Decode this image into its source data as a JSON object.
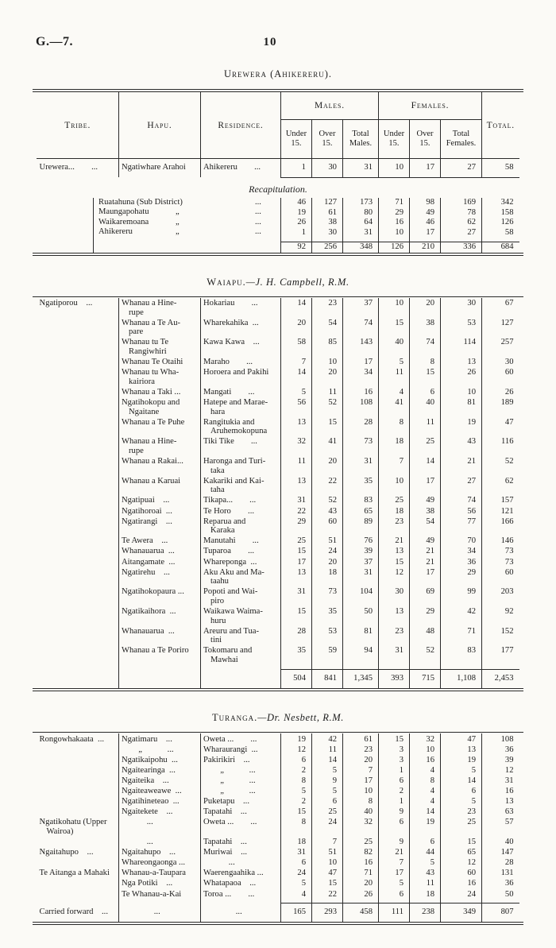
{
  "page": {
    "label": "G.—7.",
    "number": "10"
  },
  "columns": {
    "tribe": "Tribe.",
    "hapu": "Hapu.",
    "residence": "Residence.",
    "males": "Males.",
    "females": "Females.",
    "total": "Total.",
    "under": "Under 15.",
    "over": "Over 15.",
    "total_males": "Total Males.",
    "total_females": "Total Females."
  },
  "urewera": {
    "title": "Urewera (Ahikereru).",
    "rows": [
      {
        "tribe": "Urewera...  ...",
        "hapu": "Ngatiwhare Arahoi",
        "res": "Ahikereru  ...",
        "mu": "1",
        "mo": "30",
        "mt": "31",
        "fu": "10",
        "fo": "17",
        "ft": "27",
        "tot": "58"
      }
    ],
    "recap": {
      "heading": "Recapitulation.",
      "rows": [
        {
          "name": "Ruatahuna (Sub District)",
          "ditto": "",
          "dots": "...",
          "mu": "46",
          "mo": "127",
          "mt": "173",
          "fu": "71",
          "fo": "98",
          "ft": "169",
          "tot": "342"
        },
        {
          "name": "Maungapohatu",
          "ditto": "„",
          "dots": "...",
          "mu": "19",
          "mo": "61",
          "mt": "80",
          "fu": "29",
          "fo": "49",
          "ft": "78",
          "tot": "158"
        },
        {
          "name": "Waikaremoana",
          "ditto": "„",
          "dots": "...",
          "mu": "26",
          "mo": "38",
          "mt": "64",
          "fu": "16",
          "fo": "46",
          "ft": "62",
          "tot": "126"
        },
        {
          "name": "Ahikereru",
          "ditto": "„",
          "dots": "...",
          "mu": "1",
          "mo": "30",
          "mt": "31",
          "fu": "10",
          "fo": "17",
          "ft": "27",
          "tot": "58"
        }
      ],
      "totals": {
        "mu": "92",
        "mo": "256",
        "mt": "348",
        "fu": "126",
        "fo": "210",
        "ft": "336",
        "tot": "684"
      }
    }
  },
  "waiapu": {
    "title": "Waiapu.",
    "officer": "—J. H. Campbell, R.M.",
    "rows": [
      {
        "tribe": "Ngatiporou ...",
        "hapu": "Whanau a Hine-\nrupe",
        "res": "Hokariau  ...",
        "mu": "14",
        "mo": "23",
        "mt": "37",
        "fu": "10",
        "fo": "20",
        "ft": "30",
        "tot": "67"
      },
      {
        "tribe": "",
        "hapu": "Whanau a Te Au-\npare",
        "res": "Wharekahika ...",
        "mu": "20",
        "mo": "54",
        "mt": "74",
        "fu": "15",
        "fo": "38",
        "ft": "53",
        "tot": "127"
      },
      {
        "tribe": "",
        "hapu": "Whanau tu Te\nRangiwhiri",
        "res": "Kawa Kawa ...",
        "mu": "58",
        "mo": "85",
        "mt": "143",
        "fu": "40",
        "fo": "74",
        "ft": "114",
        "tot": "257"
      },
      {
        "tribe": "",
        "hapu": "Whanau Te Otaihi",
        "res": "Maraho  ...",
        "mu": "7",
        "mo": "10",
        "mt": "17",
        "fu": "5",
        "fo": "8",
        "ft": "13",
        "tot": "30"
      },
      {
        "tribe": "",
        "hapu": "Whanau tu Wha-\nkairiora",
        "res": "Horoera and Pakihi",
        "mu": "14",
        "mo": "20",
        "mt": "34",
        "fu": "11",
        "fo": "15",
        "ft": "26",
        "tot": "60"
      },
      {
        "tribe": "",
        "hapu": "Whanau a Taki ...",
        "res": "Mangati  ...",
        "mu": "5",
        "mo": "11",
        "mt": "16",
        "fu": "4",
        "fo": "6",
        "ft": "10",
        "tot": "26"
      },
      {
        "tribe": "",
        "hapu": "Ngatihokopu and\nNgaitane",
        "res": "Hatepe and Marae-\nhara",
        "mu": "56",
        "mo": "52",
        "mt": "108",
        "fu": "41",
        "fo": "40",
        "ft": "81",
        "tot": "189"
      },
      {
        "tribe": "",
        "hapu": "Whanau a Te Puhe",
        "res": "Rangitukia and\nAruhemokopuna",
        "mu": "13",
        "mo": "15",
        "mt": "28",
        "fu": "8",
        "fo": "11",
        "ft": "19",
        "tot": "47"
      },
      {
        "tribe": "",
        "hapu": "Whanau a Hine-\nrupe",
        "res": "Tiki Tike  ...",
        "mu": "32",
        "mo": "41",
        "mt": "73",
        "fu": "18",
        "fo": "25",
        "ft": "43",
        "tot": "116"
      },
      {
        "tribe": "",
        "hapu": "Whanau a Rakai...",
        "res": "Haronga and Turi-\ntaka",
        "mu": "11",
        "mo": "20",
        "mt": "31",
        "fu": "7",
        "fo": "14",
        "ft": "21",
        "tot": "52"
      },
      {
        "tribe": "",
        "hapu": "Whanau a Karuai",
        "res": "Kakariki and Kai-\ntaha",
        "mu": "13",
        "mo": "22",
        "mt": "35",
        "fu": "10",
        "fo": "17",
        "ft": "27",
        "tot": "62"
      },
      {
        "tribe": "",
        "hapu": "Ngatipuai ...",
        "res": "Tikapa...  ...",
        "mu": "31",
        "mo": "52",
        "mt": "83",
        "fu": "25",
        "fo": "49",
        "ft": "74",
        "tot": "157"
      },
      {
        "tribe": "",
        "hapu": "Ngatihoroai ...",
        "res": "Te Horo  ...",
        "mu": "22",
        "mo": "43",
        "mt": "65",
        "fu": "18",
        "fo": "38",
        "ft": "56",
        "tot": "121"
      },
      {
        "tribe": "",
        "hapu": "Ngatirangi ...",
        "res": "Reparua and\nKaraka",
        "mu": "29",
        "mo": "60",
        "mt": "89",
        "fu": "23",
        "fo": "54",
        "ft": "77",
        "tot": "166"
      },
      {
        "tribe": "",
        "hapu": "Te Awera ...",
        "res": "Manutahi  ...",
        "mu": "25",
        "mo": "51",
        "mt": "76",
        "fu": "21",
        "fo": "49",
        "ft": "70",
        "tot": "146"
      },
      {
        "tribe": "",
        "hapu": "Whanauarua ...",
        "res": "Tuparoa  ...",
        "mu": "15",
        "mo": "24",
        "mt": "39",
        "fu": "13",
        "fo": "21",
        "ft": "34",
        "tot": "73"
      },
      {
        "tribe": "",
        "hapu": "Aitangamate ...",
        "res": "Whareponga ...",
        "mu": "17",
        "mo": "20",
        "mt": "37",
        "fu": "15",
        "fo": "21",
        "ft": "36",
        "tot": "73"
      },
      {
        "tribe": "",
        "hapu": "Ngatirehu ...",
        "res": "Aku Aku and Ma-\ntaahu",
        "mu": "13",
        "mo": "18",
        "mt": "31",
        "fu": "12",
        "fo": "17",
        "ft": "29",
        "tot": "60"
      },
      {
        "tribe": "",
        "hapu": "Ngatihokopaura ...",
        "res": "Popoti and Wai-\npiro",
        "mu": "31",
        "mo": "73",
        "mt": "104",
        "fu": "30",
        "fo": "69",
        "ft": "99",
        "tot": "203"
      },
      {
        "tribe": "",
        "hapu": "Ngatikaihora ...",
        "res": "Waikawa Waima-\nhuru",
        "mu": "15",
        "mo": "35",
        "mt": "50",
        "fu": "13",
        "fo": "29",
        "ft": "42",
        "tot": "92"
      },
      {
        "tribe": "",
        "hapu": "Whanauarua ...",
        "res": "Areuru and Tua-\ntini",
        "mu": "28",
        "mo": "53",
        "mt": "81",
        "fu": "23",
        "fo": "48",
        "ft": "71",
        "tot": "152"
      },
      {
        "tribe": "",
        "hapu": "Whanau a Te Poriro",
        "res": "Tokomaru and\nMawhai",
        "mu": "35",
        "mo": "59",
        "mt": "94",
        "fu": "31",
        "fo": "52",
        "ft": "83",
        "tot": "177"
      }
    ],
    "totals": {
      "mu": "504",
      "mo": "841",
      "mt": "1,345",
      "fu": "393",
      "fo": "715",
      "ft": "1,108",
      "tot": "2,453"
    }
  },
  "turanga": {
    "title": "Turanga.",
    "officer": "—Dr. Nesbett, R.M.",
    "rows": [
      {
        "tribe": "Rongowhakaata ...",
        "hapu": "Ngatimaru ...",
        "res": "Oweta ...  ...",
        "mu": "19",
        "mo": "42",
        "mt": "61",
        "fu": "15",
        "fo": "32",
        "ft": "47",
        "tot": "108"
      },
      {
        "tribe": "",
        "hapu": "  „   ...",
        "res": "Wharaurangi ...",
        "mu": "12",
        "mo": "11",
        "mt": "23",
        "fu": "3",
        "fo": "10",
        "ft": "13",
        "tot": "36"
      },
      {
        "tribe": "",
        "hapu": "Ngatikaipohu ...",
        "res": "Pakirikiri ...",
        "mu": "6",
        "mo": "14",
        "mt": "20",
        "fu": "3",
        "fo": "16",
        "ft": "19",
        "tot": "39"
      },
      {
        "tribe": "",
        "hapu": "Ngaitearinga ...",
        "res": "  „   ...",
        "mu": "2",
        "mo": "5",
        "mt": "7",
        "fu": "1",
        "fo": "4",
        "ft": "5",
        "tot": "12"
      },
      {
        "tribe": "",
        "hapu": "Ngaiteika ...",
        "res": "  „   ...",
        "mu": "8",
        "mo": "9",
        "mt": "17",
        "fu": "6",
        "fo": "8",
        "ft": "14",
        "tot": "31"
      },
      {
        "tribe": "",
        "hapu": "Ngaiteaweawe ...",
        "res": "  „   ...",
        "mu": "5",
        "mo": "5",
        "mt": "10",
        "fu": "2",
        "fo": "4",
        "ft": "6",
        "tot": "16"
      },
      {
        "tribe": "",
        "hapu": "Ngatihineteao ...",
        "res": "Puketapu ...",
        "mu": "2",
        "mo": "6",
        "mt": "8",
        "fu": "1",
        "fo": "4",
        "ft": "5",
        "tot": "13"
      },
      {
        "tribe": "",
        "hapu": "Ngaitekete ...",
        "res": "Tapatahi ...",
        "mu": "15",
        "mo": "25",
        "mt": "40",
        "fu": "9",
        "fo": "14",
        "ft": "23",
        "tot": "63"
      },
      {
        "tribe": "Ngatikohatu (Upper\nWairoa)",
        "hapu": "   ...",
        "res": "Oweta ...  ...",
        "mu": "8",
        "mo": "24",
        "mt": "32",
        "fu": "6",
        "fo": "19",
        "ft": "25",
        "tot": "57"
      },
      {
        "tribe": "",
        "hapu": "   ...",
        "res": "Tapatahi ...",
        "mu": "18",
        "mo": "7",
        "mt": "25",
        "fu": "9",
        "fo": "6",
        "ft": "15",
        "tot": "40"
      },
      {
        "tribe": "Ngaitahupo ...",
        "hapu": "Ngaitahupo ...",
        "res": "Muriwai ...",
        "mu": "31",
        "mo": "51",
        "mt": "82",
        "fu": "21",
        "fo": "44",
        "ft": "65",
        "tot": "147"
      },
      {
        "tribe": "",
        "hapu": "Whareongaonga ...",
        "res": "   ...",
        "mu": "6",
        "mo": "10",
        "mt": "16",
        "fu": "7",
        "fo": "5",
        "ft": "12",
        "tot": "28"
      },
      {
        "tribe": "Te Aitanga a Mahaki",
        "hapu": "Whanau-a-Taupara",
        "res": "Waerengaahika ...",
        "mu": "24",
        "mo": "47",
        "mt": "71",
        "fu": "17",
        "fo": "43",
        "ft": "60",
        "tot": "131"
      },
      {
        "tribe": "",
        "hapu": "Nga Potiki ...",
        "res": "Whatapaoa ...",
        "mu": "5",
        "mo": "15",
        "mt": "20",
        "fu": "5",
        "fo": "11",
        "ft": "16",
        "tot": "36"
      },
      {
        "tribe": "",
        "hapu": "Te Whanau-a-Kai",
        "res": "Toroa ...  ...",
        "mu": "4",
        "mo": "22",
        "mt": "26",
        "fu": "6",
        "fo": "18",
        "ft": "24",
        "tot": "50"
      }
    ],
    "carried": {
      "label": "Carried forward ...",
      "hapu": "   ...",
      "res": "   ...",
      "mu": "165",
      "mo": "293",
      "mt": "458",
      "fu": "111",
      "fo": "238",
      "ft": "349",
      "tot": "807"
    }
  }
}
